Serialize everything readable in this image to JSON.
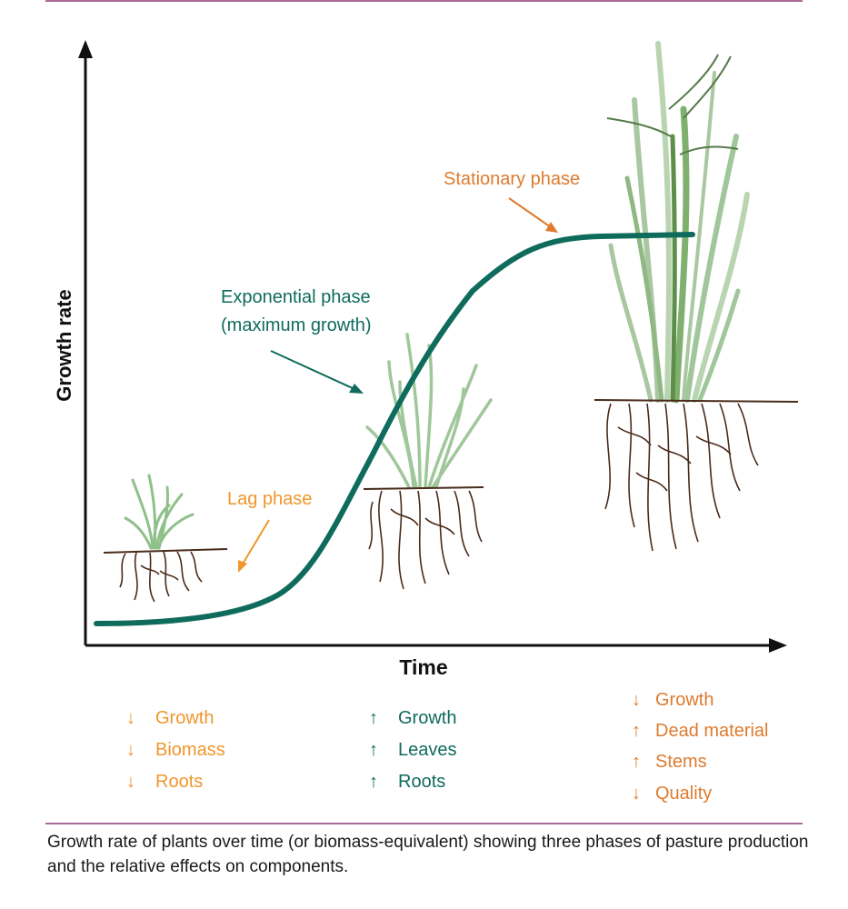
{
  "colors": {
    "curve": "#0f6b5c",
    "lag": "#f0962a",
    "exponential": "#0f6b5c",
    "stationary": "#de7b2e",
    "divider": "#a86a9a",
    "root": "#4a2b1a",
    "grass_light": "#9fc79a",
    "grass_mid": "#7fb06e",
    "grass_dark": "#5d8f4a"
  },
  "axes": {
    "x_label": "Time",
    "y_label": "Growth rate"
  },
  "phases": {
    "lag": "Lag phase",
    "exponential_line1": "Exponential phase",
    "exponential_line2": "(maximum growth)",
    "stationary": "Stationary phase"
  },
  "effects": {
    "lag": [
      {
        "arrow": "↓",
        "text": "Growth"
      },
      {
        "arrow": "↓",
        "text": "Biomass"
      },
      {
        "arrow": "↓",
        "text": "Roots"
      }
    ],
    "exponential": [
      {
        "arrow": "↑",
        "text": "Growth"
      },
      {
        "arrow": "↑",
        "text": "Leaves"
      },
      {
        "arrow": "↑",
        "text": "Roots"
      }
    ],
    "stationary": [
      {
        "arrow": "↓",
        "text": "Growth"
      },
      {
        "arrow": "↑",
        "text": "Dead material"
      },
      {
        "arrow": "↑",
        "text": "Stems"
      },
      {
        "arrow": "↓",
        "text": "Quality"
      }
    ]
  },
  "caption": "Growth rate of plants over time (or biomass-equivalent) showing three phases of pasture production and the relative effects on components.",
  "icons": {
    "small_plant": "small-grass-plant",
    "medium_plant": "medium-grass-plant",
    "large_plant": "large-grass-plant"
  }
}
